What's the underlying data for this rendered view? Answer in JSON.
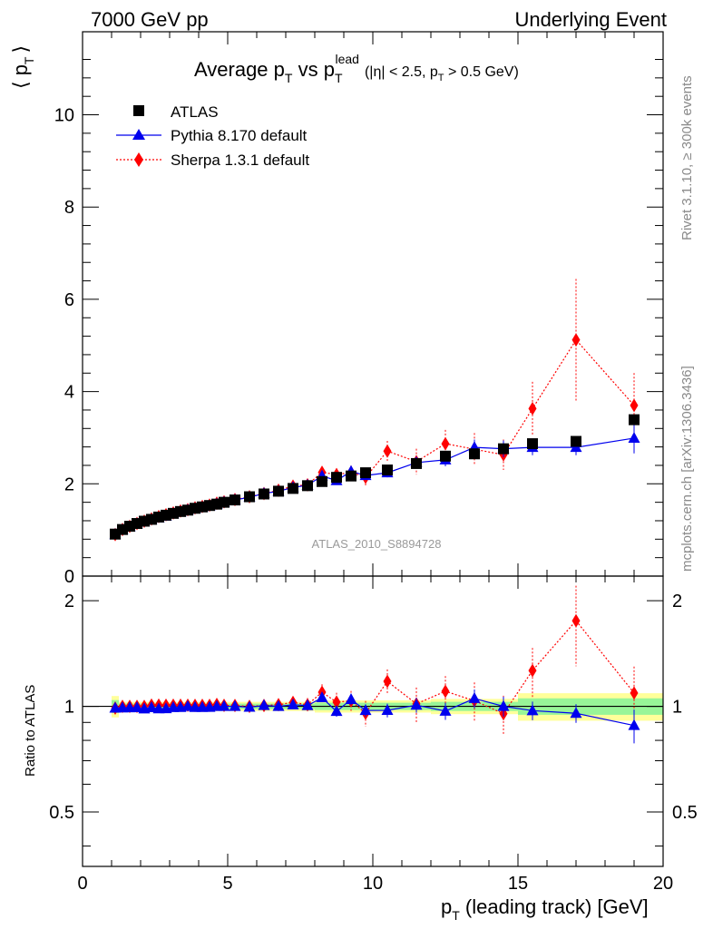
{
  "header": {
    "left": "7000 GeV pp",
    "right": "Underlying Event"
  },
  "title": {
    "main": "Average p",
    "sub1": "T",
    "mid": " vs p",
    "sub2": "T",
    "sup2": "lead",
    "cut_a": "(|η| < 2.5, p",
    "cut_sub": "T",
    "cut_b": " > 0.5 GeV)"
  },
  "side_labels": {
    "rivet": "Rivet 3.1.10, ≥ 300k events",
    "mcplots": "mcplots.cern.ch [arXiv:1306.3436]"
  },
  "watermark": "ATLAS_2010_S8894728",
  "axes": {
    "ylabel_main": "⟨ p",
    "ylabel_main_sub": "T",
    "ylabel_main_close": "⟩",
    "ylabel_ratio": "Ratio to ATLAS",
    "xlabel_a": "p",
    "xlabel_sub": "T",
    "xlabel_b": " (leading track) [GeV]"
  },
  "chart_data": {
    "type": "scatter",
    "xlim": [
      0,
      20
    ],
    "ylim": [
      0,
      11.8
    ],
    "ratio_ylim": [
      0.35,
      2.35
    ],
    "x_ticks": [
      0,
      5,
      10,
      15,
      20
    ],
    "y_ticks": [
      0,
      2,
      4,
      6,
      8,
      10
    ],
    "ratio_ticks": [
      0.5,
      1,
      2
    ],
    "x": [
      1.125,
      1.375,
      1.625,
      1.875,
      2.125,
      2.375,
      2.625,
      2.875,
      3.125,
      3.375,
      3.625,
      3.875,
      4.125,
      4.375,
      4.625,
      4.875,
      5.25,
      5.75,
      6.25,
      6.75,
      7.25,
      7.75,
      8.25,
      8.75,
      9.25,
      9.75,
      10.5,
      11.5,
      12.5,
      13.5,
      14.5,
      15.5,
      17.0,
      19.0
    ],
    "series": [
      {
        "name": "ATLAS",
        "color": "#000000",
        "marker": "square",
        "values": [
          0.91,
          1.01,
          1.08,
          1.14,
          1.19,
          1.23,
          1.28,
          1.32,
          1.36,
          1.4,
          1.43,
          1.47,
          1.5,
          1.53,
          1.56,
          1.6,
          1.65,
          1.72,
          1.78,
          1.84,
          1.9,
          1.96,
          2.05,
          2.14,
          2.17,
          2.24,
          2.3,
          2.44,
          2.6,
          2.65,
          2.76,
          2.87,
          2.92,
          3.39
        ],
        "band_lo": [
          0.93,
          0.97,
          0.97,
          0.97,
          0.97,
          0.97,
          0.97,
          0.97,
          0.97,
          0.97,
          0.97,
          0.97,
          0.97,
          0.97,
          0.97,
          0.97,
          0.97,
          0.97,
          0.97,
          0.97,
          0.97,
          0.97,
          0.96,
          0.96,
          0.96,
          0.96,
          0.96,
          0.96,
          0.95,
          0.95,
          0.95,
          0.91,
          0.91,
          0.91
        ],
        "band_hi": [
          1.07,
          1.03,
          1.03,
          1.03,
          1.03,
          1.03,
          1.03,
          1.03,
          1.03,
          1.03,
          1.03,
          1.03,
          1.03,
          1.03,
          1.03,
          1.03,
          1.03,
          1.03,
          1.03,
          1.03,
          1.03,
          1.03,
          1.04,
          1.04,
          1.04,
          1.04,
          1.04,
          1.04,
          1.05,
          1.05,
          1.05,
          1.09,
          1.09,
          1.09
        ]
      },
      {
        "name": "Pythia 8.170 default",
        "color": "#0000ee",
        "marker": "triangle",
        "values": [
          0.9,
          1.0,
          1.07,
          1.13,
          1.17,
          1.22,
          1.26,
          1.3,
          1.35,
          1.39,
          1.43,
          1.46,
          1.49,
          1.52,
          1.56,
          1.6,
          1.65,
          1.71,
          1.79,
          1.84,
          1.92,
          1.97,
          2.17,
          2.07,
          2.27,
          2.18,
          2.24,
          2.46,
          2.52,
          2.79,
          2.76,
          2.79,
          2.79,
          2.99
        ],
        "err": [
          0.02,
          0.02,
          0.02,
          0.02,
          0.02,
          0.02,
          0.02,
          0.02,
          0.02,
          0.02,
          0.02,
          0.02,
          0.02,
          0.02,
          0.02,
          0.02,
          0.03,
          0.03,
          0.03,
          0.04,
          0.04,
          0.05,
          0.06,
          0.07,
          0.08,
          0.09,
          0.1,
          0.12,
          0.14,
          0.17,
          0.18,
          0.17,
          0.17,
          0.33
        ]
      },
      {
        "name": "Sherpa 1.3.1 default",
        "color": "#ff0000",
        "marker": "diamond",
        "values": [
          0.9,
          1.01,
          1.08,
          1.14,
          1.19,
          1.24,
          1.29,
          1.33,
          1.37,
          1.41,
          1.44,
          1.48,
          1.51,
          1.54,
          1.58,
          1.61,
          1.66,
          1.72,
          1.79,
          1.86,
          1.95,
          1.98,
          2.25,
          2.2,
          2.25,
          2.14,
          2.71,
          2.48,
          2.87,
          2.75,
          2.63,
          3.63,
          5.12,
          3.7
        ],
        "err": [
          0.02,
          0.02,
          0.02,
          0.02,
          0.02,
          0.02,
          0.02,
          0.02,
          0.02,
          0.02,
          0.02,
          0.03,
          0.03,
          0.03,
          0.03,
          0.03,
          0.04,
          0.05,
          0.06,
          0.07,
          0.08,
          0.09,
          0.12,
          0.14,
          0.15,
          0.18,
          0.22,
          0.28,
          0.3,
          0.35,
          0.33,
          0.58,
          1.32,
          0.7
        ]
      }
    ]
  }
}
